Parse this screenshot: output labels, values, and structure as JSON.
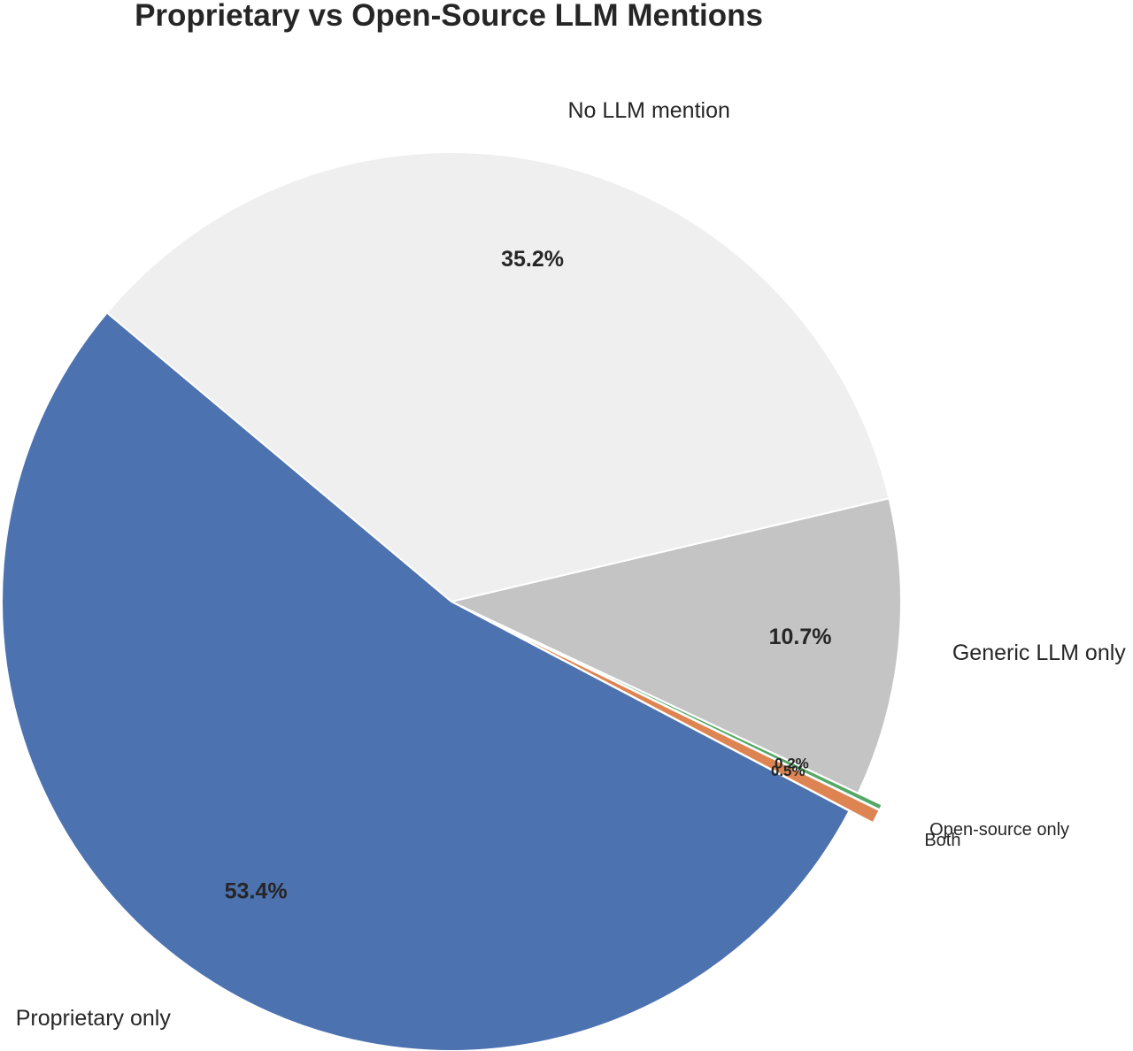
{
  "chart_data": {
    "type": "pie",
    "title": "Proprietary vs Open-Source LLM Mentions",
    "slices": [
      {
        "label": "Proprietary only",
        "value": 53.4,
        "pct_label": "53.4%",
        "color": "#4c72b0"
      },
      {
        "label": "Both",
        "value": 0.5,
        "pct_label": "0.5%",
        "color": "#dd8452"
      },
      {
        "label": "Open-source only",
        "value": 0.2,
        "pct_label": "0.2%",
        "color": "#55a868"
      },
      {
        "label": "Generic LLM only",
        "value": 10.7,
        "pct_label": "10.7%",
        "color": "#c4c4c4"
      },
      {
        "label": "No LLM mention",
        "value": 35.2,
        "pct_label": "35.2%",
        "color": "#efefef"
      }
    ],
    "start_angle_deg": 140,
    "direction": "counterclockwise",
    "exploded": [
      "Both",
      "Open-source only"
    ],
    "legend": "none"
  }
}
